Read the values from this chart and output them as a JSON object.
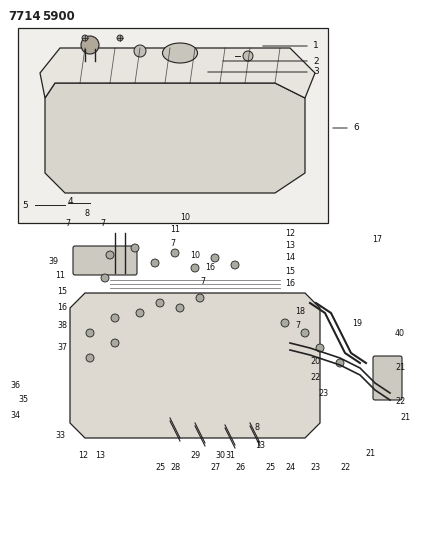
{
  "title": "7714  5900",
  "bg_color": "#ffffff",
  "ink_color": "#222222",
  "fig_width": 4.28,
  "fig_height": 5.33,
  "dpi": 100
}
